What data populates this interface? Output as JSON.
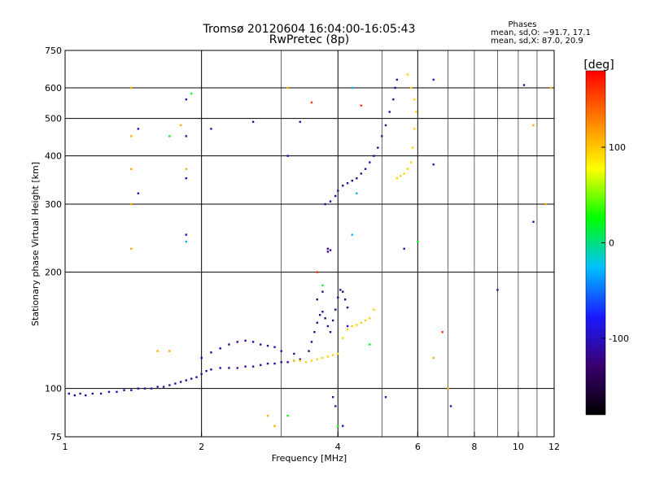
{
  "chart_data": {
    "type": "scatter",
    "title": "Tromsø 20120604 16:04:00-16:05:43",
    "subtitle": "RwPretec (8p)",
    "xlabel": "Frequency [MHz]",
    "ylabel": "Stationary phase Virtual Height [km]",
    "x_scale": "log",
    "y_scale": "log",
    "xlim": [
      1,
      12
    ],
    "ylim": [
      75,
      750
    ],
    "x_ticks": [
      1,
      2,
      4,
      6,
      8,
      10,
      12
    ],
    "x_tick_labels": [
      "1",
      "2",
      "4",
      "6",
      "8",
      "10",
      "12"
    ],
    "y_ticks": [
      75,
      100,
      200,
      300,
      400,
      500,
      600,
      750
    ],
    "y_tick_labels": [
      "75",
      "100",
      "200",
      "300",
      "400",
      "500",
      "600",
      "750"
    ],
    "grid": true,
    "grid_x_major": [
      2,
      4,
      6
    ],
    "grid_x_minor": [
      3,
      5,
      7,
      8,
      9,
      10,
      11
    ],
    "grid_y": [
      100,
      200,
      300,
      400,
      500,
      600
    ],
    "annotation": {
      "heading": "Phases",
      "line1": "mean, sd,O: −91.7, 17.1",
      "line2": "mean, sd,X:  87.0, 20.9"
    },
    "colorbar": {
      "label": "[deg]",
      "range": [
        -180,
        180
      ],
      "ticks": [
        100,
        0,
        -100
      ],
      "tick_labels": [
        "100",
        "0",
        "-100"
      ],
      "colormap": [
        "#000000",
        "#3a0070",
        "#1a1aff",
        "#00c0ff",
        "#00ff00",
        "#ffff00",
        "#ff8000",
        "#ff0000"
      ]
    },
    "series": [
      {
        "phase_deg": -110,
        "points": [
          [
            1.02,
            97
          ],
          [
            1.05,
            96
          ],
          [
            1.08,
            97
          ],
          [
            1.11,
            96
          ],
          [
            1.15,
            97
          ],
          [
            1.2,
            97
          ],
          [
            1.25,
            98
          ],
          [
            1.3,
            98
          ],
          [
            1.35,
            99
          ],
          [
            1.4,
            99
          ],
          [
            1.45,
            100
          ],
          [
            1.5,
            100
          ],
          [
            1.55,
            100
          ],
          [
            1.6,
            101
          ],
          [
            1.65,
            101
          ],
          [
            1.7,
            102
          ],
          [
            1.75,
            103
          ],
          [
            1.8,
            104
          ],
          [
            1.85,
            105
          ],
          [
            1.9,
            106
          ],
          [
            1.95,
            107
          ],
          [
            2.0,
            109
          ],
          [
            2.05,
            111
          ],
          [
            2.1,
            112
          ],
          [
            2.2,
            113
          ],
          [
            2.3,
            113
          ],
          [
            2.4,
            113
          ],
          [
            2.5,
            114
          ],
          [
            2.6,
            114
          ],
          [
            2.7,
            115
          ],
          [
            2.8,
            116
          ],
          [
            2.9,
            116
          ],
          [
            3.0,
            117
          ],
          [
            3.1,
            117
          ],
          [
            3.2,
            118
          ],
          [
            3.3,
            119
          ],
          [
            2.0,
            120
          ],
          [
            2.1,
            124
          ],
          [
            2.2,
            127
          ],
          [
            2.3,
            130
          ],
          [
            2.4,
            132
          ],
          [
            2.5,
            133
          ],
          [
            2.6,
            132
          ],
          [
            2.7,
            130
          ],
          [
            2.8,
            129
          ],
          [
            2.9,
            128
          ],
          [
            3.0,
            125
          ],
          [
            3.2,
            123
          ]
        ]
      },
      {
        "phase_deg": -120,
        "points": [
          [
            3.45,
            125
          ],
          [
            3.5,
            132
          ],
          [
            3.55,
            140
          ],
          [
            3.6,
            148
          ],
          [
            3.65,
            155
          ],
          [
            3.7,
            158
          ],
          [
            3.75,
            152
          ],
          [
            3.8,
            145
          ],
          [
            3.85,
            140
          ],
          [
            3.9,
            150
          ],
          [
            3.95,
            160
          ],
          [
            4.0,
            172
          ],
          [
            4.05,
            180
          ],
          [
            4.1,
            178
          ],
          [
            4.15,
            170
          ],
          [
            4.2,
            162
          ],
          [
            3.6,
            170
          ],
          [
            3.7,
            178
          ]
        ]
      },
      {
        "phase_deg": -115,
        "points": [
          [
            3.75,
            300
          ],
          [
            3.85,
            305
          ],
          [
            3.95,
            315
          ],
          [
            4.0,
            325
          ],
          [
            4.1,
            335
          ],
          [
            4.2,
            340
          ],
          [
            4.3,
            345
          ],
          [
            4.4,
            350
          ],
          [
            4.5,
            360
          ],
          [
            4.6,
            370
          ],
          [
            4.7,
            385
          ],
          [
            4.8,
            400
          ],
          [
            4.9,
            420
          ],
          [
            5.0,
            450
          ],
          [
            5.1,
            480
          ],
          [
            5.2,
            520
          ],
          [
            5.3,
            560
          ],
          [
            5.35,
            600
          ],
          [
            5.4,
            630
          ],
          [
            3.8,
            230
          ],
          [
            3.85,
            228
          ],
          [
            3.8,
            226
          ]
        ]
      },
      {
        "phase_deg": 95,
        "points": [
          [
            3.2,
            118
          ],
          [
            3.3,
            118
          ],
          [
            3.4,
            117
          ],
          [
            3.5,
            118
          ],
          [
            3.6,
            119
          ],
          [
            3.7,
            120
          ],
          [
            3.8,
            121
          ],
          [
            3.9,
            122
          ],
          [
            4.0,
            123
          ],
          [
            4.1,
            135
          ],
          [
            4.2,
            142
          ],
          [
            4.3,
            145
          ],
          [
            4.4,
            146
          ],
          [
            4.5,
            148
          ],
          [
            4.6,
            150
          ],
          [
            4.7,
            152
          ],
          [
            4.8,
            160
          ],
          [
            5.4,
            350
          ],
          [
            5.5,
            355
          ],
          [
            5.6,
            360
          ],
          [
            5.7,
            370
          ],
          [
            5.8,
            385
          ],
          [
            5.85,
            420
          ],
          [
            5.9,
            470
          ],
          [
            5.95,
            520
          ],
          [
            5.9,
            560
          ],
          [
            5.8,
            600
          ],
          [
            5.7,
            650
          ]
        ]
      },
      {
        "phase_deg": 110,
        "points": [
          [
            1.4,
            600
          ],
          [
            1.4,
            450
          ],
          [
            1.4,
            370
          ],
          [
            1.4,
            300
          ],
          [
            1.4,
            230
          ],
          [
            1.6,
            125
          ],
          [
            1.7,
            125
          ],
          [
            1.8,
            480
          ],
          [
            1.85,
            370
          ],
          [
            2.8,
            85
          ],
          [
            2.9,
            80
          ],
          [
            3.1,
            600
          ],
          [
            6.5,
            120
          ],
          [
            7.0,
            100
          ],
          [
            10.8,
            480
          ],
          [
            11.5,
            300
          ],
          [
            11.8,
            600
          ]
        ]
      },
      {
        "phase_deg": -100,
        "points": [
          [
            1.45,
            470
          ],
          [
            1.45,
            320
          ],
          [
            1.85,
            560
          ],
          [
            1.85,
            450
          ],
          [
            1.85,
            350
          ],
          [
            1.85,
            250
          ],
          [
            2.1,
            470
          ],
          [
            2.6,
            490
          ],
          [
            3.1,
            400
          ],
          [
            3.3,
            490
          ],
          [
            3.9,
            95
          ],
          [
            3.95,
            90
          ],
          [
            4.1,
            80
          ],
          [
            4.2,
            145
          ],
          [
            5.1,
            95
          ],
          [
            5.6,
            230
          ],
          [
            6.5,
            630
          ],
          [
            6.5,
            380
          ],
          [
            9.0,
            180
          ],
          [
            10.3,
            610
          ],
          [
            10.8,
            270
          ],
          [
            7.1,
            90
          ]
        ]
      },
      {
        "phase_deg": 160,
        "points": [
          [
            3.5,
            550
          ],
          [
            6.8,
            140
          ],
          [
            4.5,
            540
          ],
          [
            3.6,
            200
          ]
        ]
      },
      {
        "phase_deg": 20,
        "points": [
          [
            1.7,
            450
          ],
          [
            1.9,
            580
          ],
          [
            3.1,
            85
          ],
          [
            4.0,
            80
          ],
          [
            4.7,
            130
          ],
          [
            3.7,
            185
          ],
          [
            6.0,
            240
          ]
        ]
      },
      {
        "phase_deg": -30,
        "points": [
          [
            1.85,
            240
          ],
          [
            4.3,
            250
          ],
          [
            4.3,
            600
          ],
          [
            4.4,
            320
          ]
        ]
      }
    ]
  }
}
